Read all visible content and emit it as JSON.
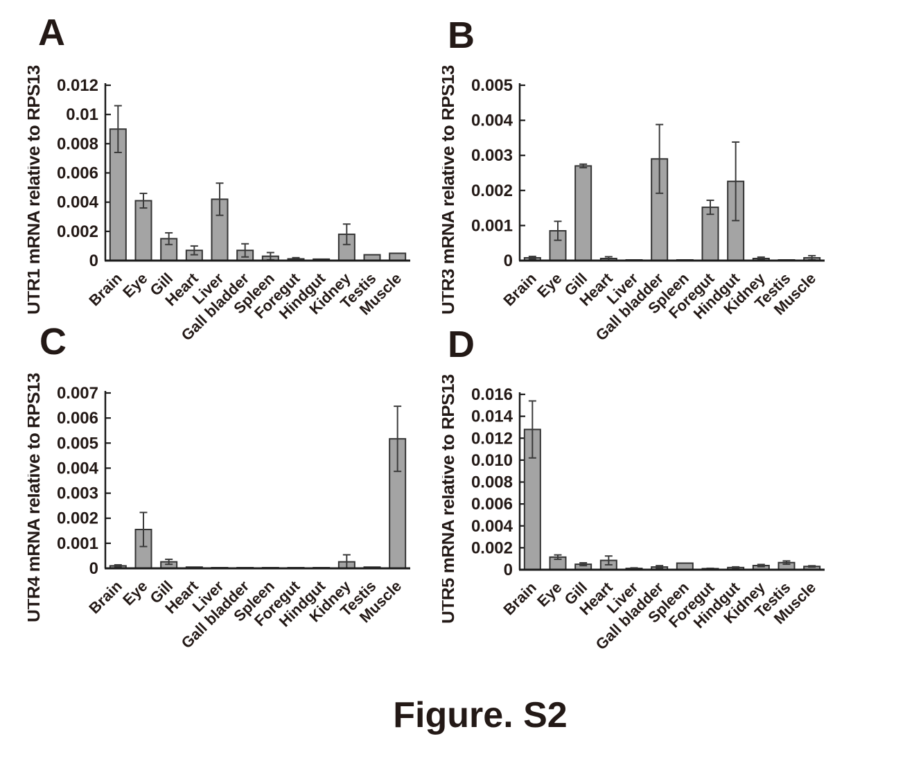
{
  "figure_label": "Figure. S2",
  "colors": {
    "bar_fill": "#a4a4a4",
    "bar_edge": "#333333",
    "axis": "#1a1a1a",
    "error_bar": "#3a3a3a",
    "text": "#231916"
  },
  "chart_data": [
    {
      "type": "bar",
      "panel": "A",
      "title": "",
      "xlabel": "",
      "ylabel": "UTR1 mRNA relative to RPS13",
      "categories": [
        "Brain",
        "Eye",
        "Gill",
        "Heart",
        "Liver",
        "Gall bladder",
        "Spleen",
        "Foregut",
        "Hindgut",
        "Kidney",
        "Testis",
        "Muscle"
      ],
      "values": [
        0.009,
        0.0041,
        0.0015,
        0.0007,
        0.0042,
        0.0007,
        0.0003,
        0.00012,
        0.0001,
        0.0018,
        0.0004,
        0.0005
      ],
      "errors": [
        0.0016,
        0.0005,
        0.0004,
        0.0003,
        0.0011,
        0.00045,
        0.00025,
        8e-05,
        0,
        0.0007,
        0,
        0
      ],
      "ylim": [
        0,
        0.012
      ],
      "ytick_labels": [
        "0",
        "0.002",
        "0.004",
        "0.006",
        "0.008",
        "0.01",
        "0.012"
      ],
      "grid": false,
      "legend": null
    },
    {
      "type": "bar",
      "panel": "B",
      "title": "",
      "xlabel": "",
      "ylabel": "UTR3 mRNA relative to RPS13",
      "categories": [
        "Brain",
        "Eye",
        "Gill",
        "Heart",
        "Liver",
        "Gall bladder",
        "Spleen",
        "Foregut",
        "Hindgut",
        "Kidney",
        "Testis",
        "Muscle"
      ],
      "values": [
        8e-05,
        0.00085,
        0.0027,
        6e-05,
        2e-05,
        0.0029,
        2e-05,
        0.00152,
        0.00226,
        6e-05,
        2e-05,
        8e-05
      ],
      "errors": [
        4e-05,
        0.00027,
        5e-05,
        5e-05,
        0,
        0.00098,
        0,
        0.0002,
        0.00112,
        4e-05,
        0,
        6e-05
      ],
      "ylim": [
        0,
        0.005
      ],
      "ytick_labels": [
        "0",
        "0.001",
        "0.002",
        "0.003",
        "0.004",
        "0.005"
      ],
      "grid": false,
      "legend": null
    },
    {
      "type": "bar",
      "panel": "C",
      "title": "",
      "xlabel": "",
      "ylabel": "UTR4 mRNA relative to RPS13",
      "categories": [
        "Brain",
        "Eye",
        "Gill",
        "Heart",
        "Liver",
        "Gall bladder",
        "Spleen",
        "Foregut",
        "Hindgut",
        "Kidney",
        "Testis",
        "Muscle"
      ],
      "values": [
        0.0001,
        0.00155,
        0.00026,
        5e-05,
        2e-05,
        2e-05,
        2e-05,
        2e-05,
        1e-05,
        0.00026,
        5e-05,
        0.00517
      ],
      "errors": [
        4e-05,
        0.00068,
        0.0001,
        0,
        0,
        0,
        0,
        0,
        0,
        0.00028,
        0,
        0.0013
      ],
      "ylim": [
        0,
        0.007
      ],
      "ytick_labels": [
        "0",
        "0.001",
        "0.002",
        "0.003",
        "0.004",
        "0.005",
        "0.006",
        "0.007"
      ],
      "grid": false,
      "legend": null
    },
    {
      "type": "bar",
      "panel": "D",
      "title": "",
      "xlabel": "",
      "ylabel": "UTR5 mRNA relative to RPS13",
      "categories": [
        "Brain",
        "Eye",
        "Gill",
        "Heart",
        "Liver",
        "Gall bladder",
        "Spleen",
        "Foregut",
        "Hindgut",
        "Kidney",
        "Testis",
        "Muscle"
      ],
      "values": [
        0.0128,
        0.00115,
        0.0005,
        0.00085,
        0.00012,
        0.00025,
        0.0006,
        0.0001,
        0.0002,
        0.00038,
        0.00065,
        0.0003
      ],
      "errors": [
        0.0026,
        0.0002,
        0.00013,
        0.0004,
        5e-05,
        0.00012,
        0,
        3e-05,
        6e-05,
        0.0001,
        0.00015,
        6e-05
      ],
      "ylim": [
        0,
        0.016
      ],
      "ytick_labels": [
        "0",
        "0.002",
        "0.004",
        "0.006",
        "0.008",
        "0.010",
        "0.012",
        "0.014",
        "0.016"
      ],
      "grid": false,
      "legend": null
    }
  ]
}
